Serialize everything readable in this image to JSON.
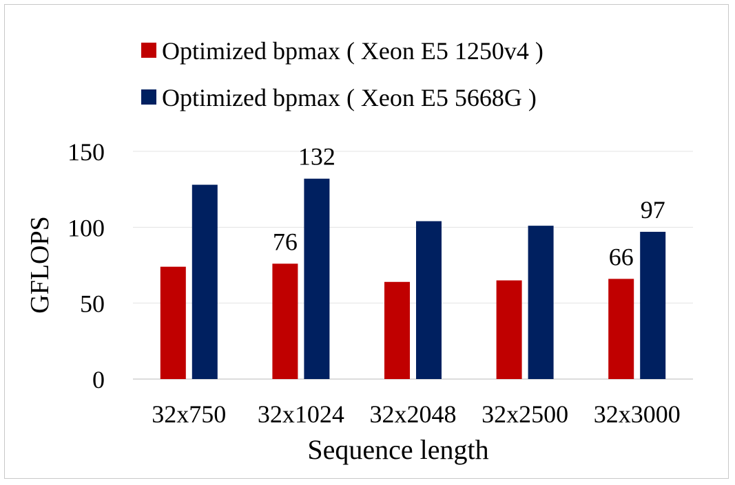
{
  "chart_data": {
    "type": "bar",
    "categories": [
      "32x750",
      "32x1024",
      "32x2048",
      "32x2500",
      "32x3000"
    ],
    "series": [
      {
        "name": "Optimized bpmax ( Xeon E5 1250v4 )",
        "color": "#c00000",
        "values": [
          74,
          76,
          64,
          65,
          66
        ]
      },
      {
        "name": "Optimized bpmax ( Xeon E5 5668G )",
        "color": "#002060",
        "values": [
          128,
          132,
          104,
          101,
          97
        ]
      }
    ],
    "data_labels": [
      {
        "series": 0,
        "category": 1,
        "text": "76"
      },
      {
        "series": 1,
        "category": 1,
        "text": "132"
      },
      {
        "series": 0,
        "category": 4,
        "text": "66"
      },
      {
        "series": 1,
        "category": 4,
        "text": "97"
      }
    ],
    "title": "",
    "xlabel": "Sequence length",
    "ylabel": "GFLOPS",
    "ylim": [
      0,
      150
    ],
    "yticks": [
      0,
      50,
      100,
      150
    ],
    "grid": true,
    "legend_position": "top-left"
  }
}
